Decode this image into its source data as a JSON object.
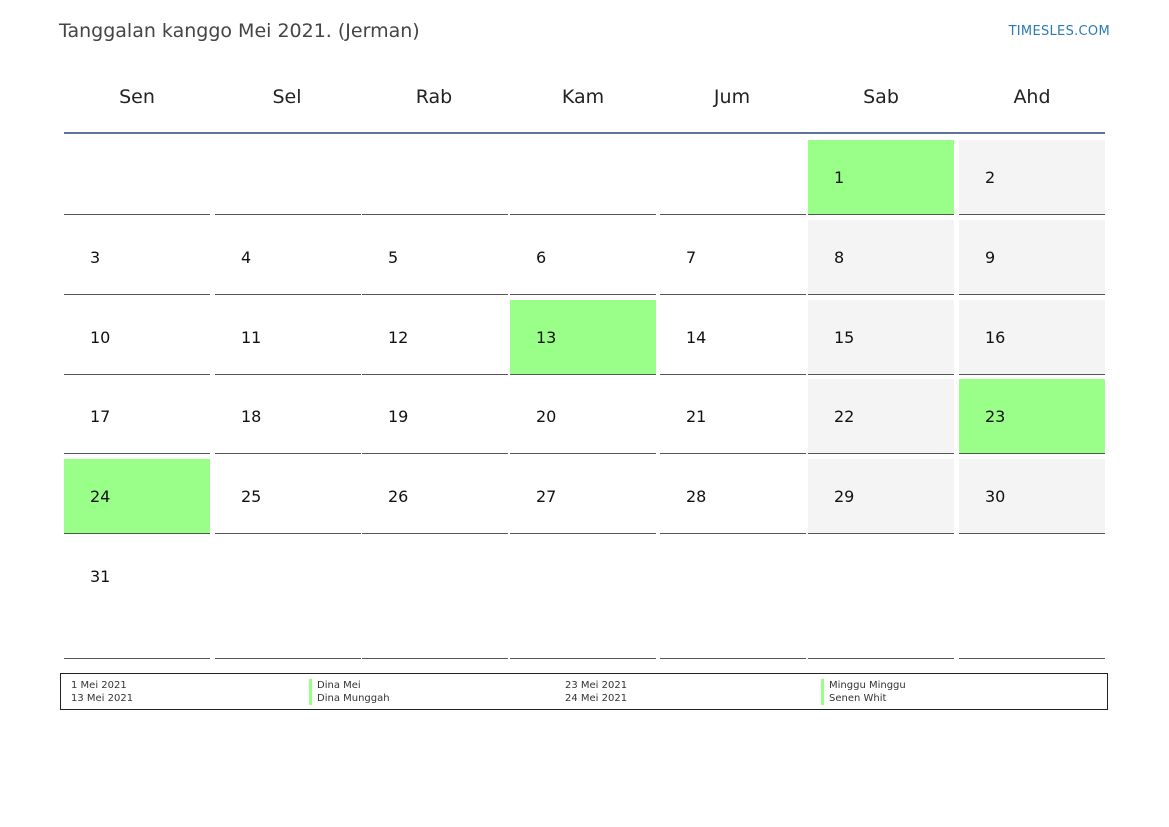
{
  "page": {
    "title": "Tanggalan kanggo Mei 2021. (Jerman)",
    "brand": "TIMESLES.COM"
  },
  "colors": {
    "holiday": "#99ff88",
    "weekend": "#f4f4f4",
    "header_rule": "#5a7595",
    "brand": "#2a7ab8"
  },
  "weekdays": [
    "Sen",
    "Sel",
    "Rab",
    "Kam",
    "Jum",
    "Sab",
    "Ahd"
  ],
  "weeks": [
    [
      "",
      "",
      "",
      "",
      "",
      "1",
      "2"
    ],
    [
      "3",
      "4",
      "5",
      "6",
      "7",
      "8",
      "9"
    ],
    [
      "10",
      "11",
      "12",
      "13",
      "14",
      "15",
      "16"
    ],
    [
      "17",
      "18",
      "19",
      "20",
      "21",
      "22",
      "23"
    ],
    [
      "24",
      "25",
      "26",
      "27",
      "28",
      "29",
      "30"
    ],
    [
      "31",
      "",
      "",
      "",
      "",
      "",
      ""
    ]
  ],
  "holiday_days": [
    "1",
    "13",
    "23",
    "24"
  ],
  "legend": [
    {
      "date": "1 Mei 2021",
      "name": "Dina Mei"
    },
    {
      "date": "13 Mei 2021",
      "name": "Dina Munggah"
    },
    {
      "date": "23 Mei 2021",
      "name": "Minggu Minggu"
    },
    {
      "date": "24 Mei 2021",
      "name": "Senen Whit"
    }
  ]
}
